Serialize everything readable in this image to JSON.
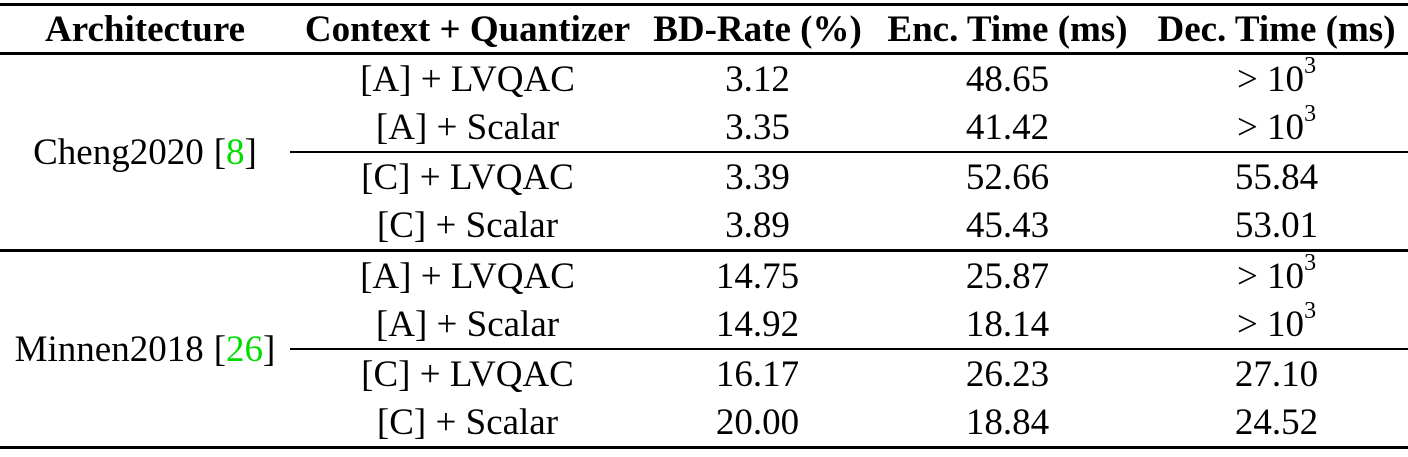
{
  "table": {
    "columns": [
      {
        "label": "Architecture"
      },
      {
        "label": "Context + Quantizer"
      },
      {
        "label": "BD-Rate (%)"
      },
      {
        "label": "Enc. Time (ms)"
      },
      {
        "label": "Dec. Time (ms)"
      }
    ],
    "symbols": {
      "bracket_open": "[",
      "bracket_close": "]"
    },
    "colors": {
      "citation_green": "#00dd00",
      "text": "#000000",
      "background": "#ffffff",
      "rule": "#000000"
    },
    "sections": [
      {
        "architecture": {
          "name": "Cheng2020",
          "cite": "8"
        },
        "rows": [
          {
            "context": "[A] + LVQAC",
            "bd": "3.12",
            "enc": "48.65",
            "dec": "> 10",
            "dec_sup": "3"
          },
          {
            "context": "[A] + Scalar",
            "bd": "3.35",
            "enc": "41.42",
            "dec": "> 10",
            "dec_sup": "3"
          },
          {
            "context": "[C] + LVQAC",
            "bd": "3.39",
            "enc": "52.66",
            "dec": "55.84",
            "dec_sup": ""
          },
          {
            "context": "[C] + Scalar",
            "bd": "3.89",
            "enc": "45.43",
            "dec": "53.01",
            "dec_sup": ""
          }
        ]
      },
      {
        "architecture": {
          "name": "Minnen2018",
          "cite": "26"
        },
        "rows": [
          {
            "context": "[A] + LVQAC",
            "bd": "14.75",
            "enc": "25.87",
            "dec": "> 10",
            "dec_sup": "3"
          },
          {
            "context": "[A] + Scalar",
            "bd": "14.92",
            "enc": "18.14",
            "dec": "> 10",
            "dec_sup": "3"
          },
          {
            "context": "[C] + LVQAC",
            "bd": "16.17",
            "enc": "26.23",
            "dec": "27.10",
            "dec_sup": ""
          },
          {
            "context": "[C] + Scalar",
            "bd": "20.00",
            "enc": "18.84",
            "dec": "24.52",
            "dec_sup": ""
          }
        ]
      }
    ]
  }
}
